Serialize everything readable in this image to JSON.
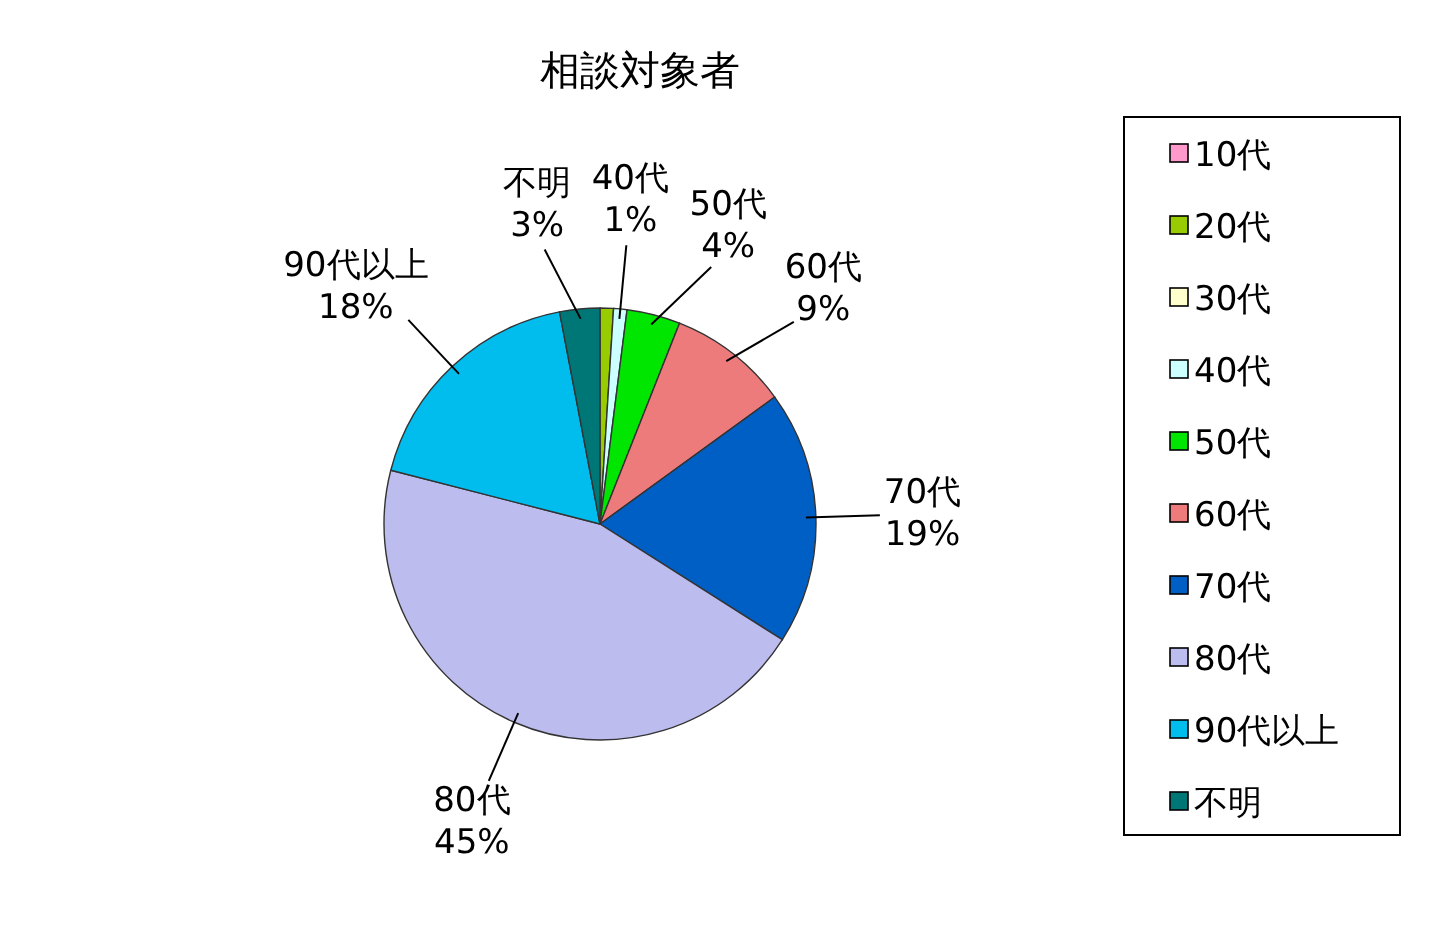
{
  "chart_data": {
    "type": "pie",
    "title": "相談対象者",
    "categories": [
      "10代",
      "20代",
      "30代",
      "40代",
      "50代",
      "60代",
      "70代",
      "80代",
      "90代以上",
      "不明"
    ],
    "values": [
      0,
      1,
      0,
      1,
      4,
      9,
      19,
      45,
      18,
      3
    ],
    "colors": [
      "#ff99cc",
      "#99cc00",
      "#ffffcc",
      "#ccffff",
      "#00e600",
      "#ee7b7b",
      "#005fc4",
      "#bcbcee",
      "#00bdee",
      "#007777"
    ],
    "value_labels": [
      null,
      null,
      null,
      "1%",
      "4%",
      "9%",
      "19%",
      "45%",
      "18%",
      "3%"
    ],
    "legend": "right"
  }
}
